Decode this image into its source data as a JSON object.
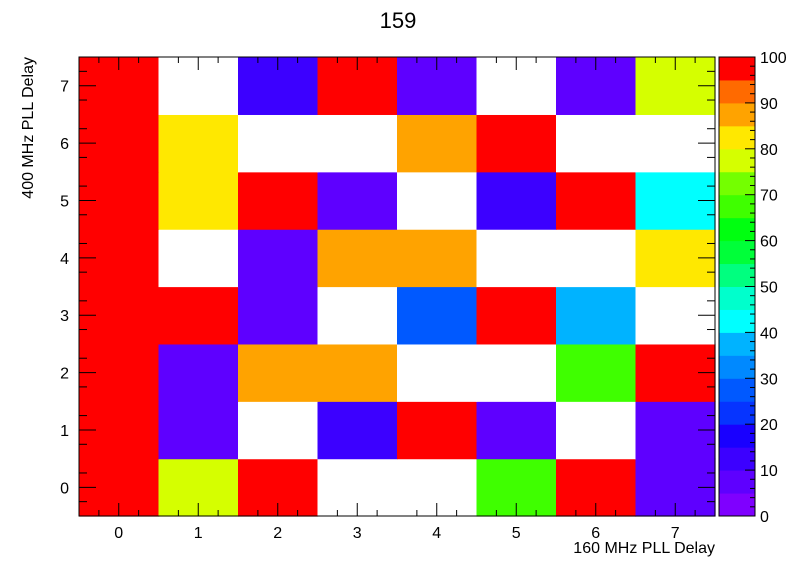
{
  "chart_data": {
    "type": "heatmap",
    "title": "159",
    "xlabel": "160 MHz PLL Delay",
    "ylabel": "400 MHz PLL Delay",
    "x_categories": [
      "0",
      "1",
      "2",
      "3",
      "4",
      "5",
      "6",
      "7"
    ],
    "y_categories": [
      "0",
      "1",
      "2",
      "3",
      "4",
      "5",
      "6",
      "7"
    ],
    "z_range": [
      0,
      100
    ],
    "z_ticks": [
      "0",
      "10",
      "20",
      "30",
      "40",
      "50",
      "60",
      "70",
      "80",
      "90",
      "100"
    ],
    "empty_value_note": "null = blank (white) cell",
    "grid": false,
    "colorbar_position": "right",
    "values_by_y": [
      [
        100,
        75,
        95,
        null,
        null,
        65,
        100,
        5
      ],
      [
        100,
        5,
        null,
        10,
        100,
        5,
        null,
        5
      ],
      [
        100,
        5,
        85,
        85,
        null,
        null,
        65,
        100
      ],
      [
        100,
        100,
        5,
        null,
        25,
        100,
        35,
        null
      ],
      [
        100,
        null,
        5,
        85,
        85,
        null,
        null,
        80
      ],
      [
        100,
        80,
        100,
        5,
        null,
        10,
        100,
        40
      ],
      [
        100,
        80,
        null,
        null,
        85,
        95,
        null,
        null
      ],
      [
        100,
        null,
        10,
        100,
        5,
        null,
        5,
        75
      ]
    ]
  }
}
